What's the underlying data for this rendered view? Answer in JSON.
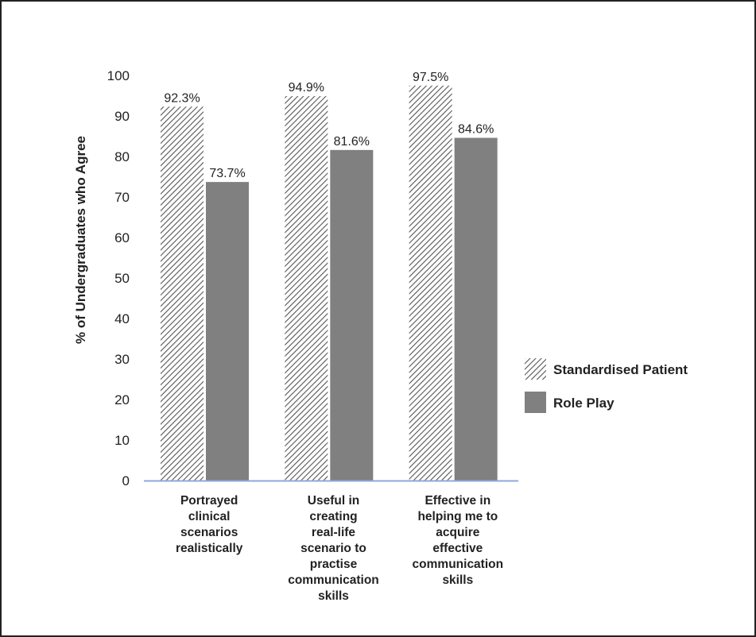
{
  "chart_data": {
    "type": "bar",
    "categories": [
      [
        "Portrayed",
        "clinical",
        "scenarios",
        "realistically"
      ],
      [
        "Useful in",
        "creating",
        "real-life",
        "scenario to",
        "practise",
        "communication",
        "skills"
      ],
      [
        "Effective in",
        "helping me to",
        "acquire",
        "effective",
        "communication",
        "skills"
      ]
    ],
    "series": [
      {
        "name": "Standardised Patient",
        "values": [
          92.3,
          94.9,
          97.5
        ],
        "labels": [
          "92.3%",
          "94.9%",
          "97.5%"
        ],
        "fill": "hatched"
      },
      {
        "name": "Role Play",
        "values": [
          73.7,
          81.6,
          84.6
        ],
        "labels": [
          "73.7%",
          "81.6%",
          "84.6%"
        ],
        "fill": "#808080"
      }
    ],
    "ylabel": "% of Undergraduates who Agree",
    "ylim": [
      0,
      100
    ],
    "yticks": [
      "0",
      "10",
      "20",
      "30",
      "40",
      "50",
      "60",
      "70",
      "80",
      "90",
      "100"
    ],
    "grid": false,
    "legend": "right",
    "colors": {
      "role_play": "#808080",
      "hatch_line": "#555555",
      "axis_line": "#8EA9DB",
      "text": "#222222",
      "border": "#222222"
    }
  }
}
